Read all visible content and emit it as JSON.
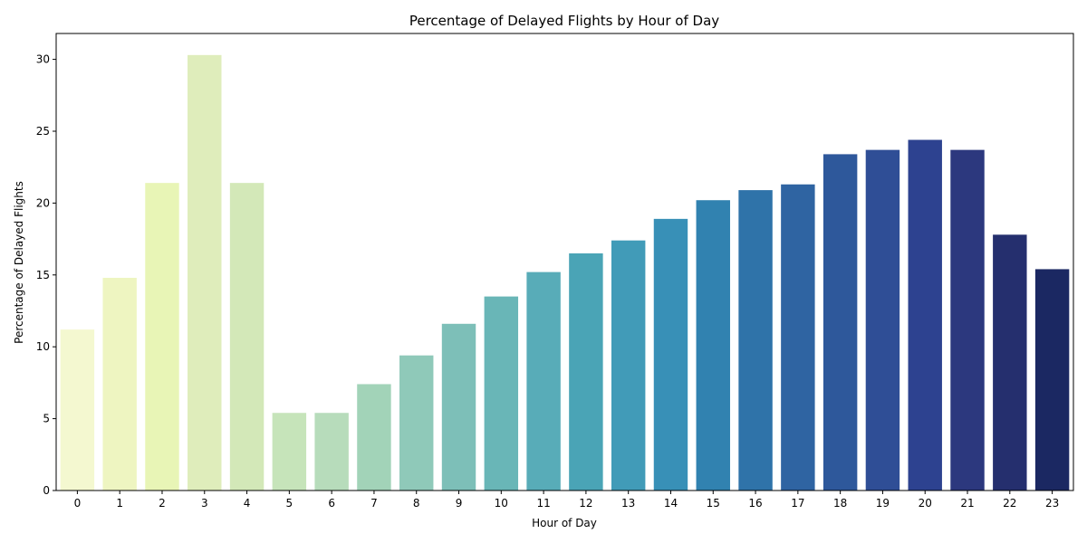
{
  "chart_data": {
    "type": "bar",
    "title": "Percentage of Delayed Flights by Hour of Day",
    "xlabel": "Hour of Day",
    "ylabel": "Percentage of Delayed Flights",
    "categories": [
      "0",
      "1",
      "2",
      "3",
      "4",
      "5",
      "6",
      "7",
      "8",
      "9",
      "10",
      "11",
      "12",
      "13",
      "14",
      "15",
      "16",
      "17",
      "18",
      "19",
      "20",
      "21",
      "22",
      "23"
    ],
    "values": [
      11.2,
      14.8,
      21.4,
      30.3,
      21.4,
      5.4,
      5.4,
      7.4,
      9.4,
      11.6,
      13.5,
      15.2,
      16.5,
      17.4,
      18.9,
      20.2,
      20.9,
      21.3,
      23.4,
      23.7,
      24.4,
      23.7,
      17.8,
      15.4
    ],
    "colors": [
      "#f4f8d0",
      "#eef5c1",
      "#e8f5b6",
      "#dfedbb",
      "#d3e8b8",
      "#c6e4ba",
      "#b7dcbb",
      "#a2d3b8",
      "#8fc9b9",
      "#7dbfb8",
      "#69b6b7",
      "#58acb8",
      "#4aa4b6",
      "#419bb8",
      "#3890b7",
      "#3182b0",
      "#2f73a9",
      "#2f64a2",
      "#2e589b",
      "#2f4e96",
      "#2d4290",
      "#2c387e",
      "#252f6e",
      "#1b2862"
    ],
    "yticks": [
      0,
      5,
      10,
      15,
      20,
      25,
      30
    ],
    "ylim": [
      0,
      31.8
    ],
    "grid": false,
    "legend": "none"
  }
}
